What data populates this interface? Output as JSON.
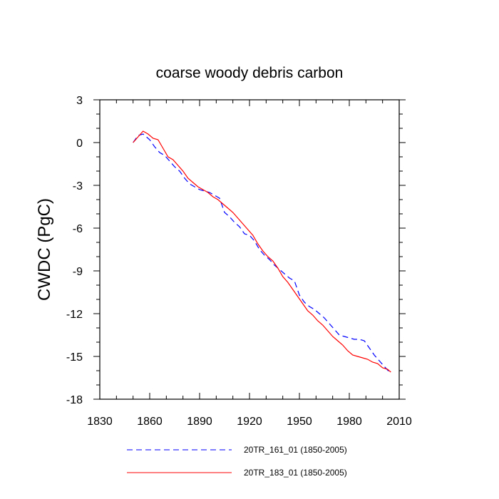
{
  "chart_data": {
    "type": "line",
    "title": "coarse woody debris carbon",
    "xlabel": "",
    "ylabel": "CWDC  (PgC)",
    "xlim": [
      1830,
      2010
    ],
    "ylim": [
      -18,
      3
    ],
    "xticks": [
      1830,
      1860,
      1890,
      1920,
      1950,
      1980,
      2010
    ],
    "yticks": [
      3,
      0,
      -3,
      -6,
      -9,
      -12,
      -15,
      -18
    ],
    "grid": false,
    "legend_placement": "bottom",
    "series": [
      {
        "name": "20TR_161_01 (1850-2005)",
        "color": "#0000ff",
        "dash": "dashed",
        "x": [
          1850,
          1853,
          1856,
          1860,
          1863,
          1866,
          1869,
          1872,
          1875,
          1878,
          1881,
          1884,
          1887,
          1890,
          1893,
          1896,
          1899,
          1902,
          1905,
          1908,
          1911,
          1914,
          1917,
          1920,
          1923,
          1926,
          1929,
          1932,
          1935,
          1938,
          1941,
          1944,
          1947,
          1950,
          1953,
          1956,
          1959,
          1962,
          1965,
          1968,
          1971,
          1974,
          1977,
          1980,
          1983,
          1986,
          1989,
          1992,
          1995,
          1998,
          2001,
          2005
        ],
        "y": [
          0.0,
          0.5,
          0.6,
          0.2,
          -0.3,
          -0.7,
          -0.9,
          -1.3,
          -1.7,
          -2.0,
          -2.5,
          -2.9,
          -3.1,
          -3.3,
          -3.4,
          -3.5,
          -3.7,
          -3.9,
          -4.9,
          -5.2,
          -5.6,
          -5.9,
          -6.4,
          -6.5,
          -6.9,
          -7.5,
          -7.9,
          -8.2,
          -8.6,
          -8.9,
          -9.2,
          -9.5,
          -9.7,
          -10.7,
          -11.2,
          -11.5,
          -11.7,
          -12.0,
          -12.3,
          -12.7,
          -13.1,
          -13.5,
          -13.6,
          -13.7,
          -13.8,
          -13.8,
          -13.9,
          -14.4,
          -14.9,
          -15.3,
          -15.7,
          -16.2
        ]
      },
      {
        "name": "20TR_183_01 (1850-2005)",
        "color": "#ff0000",
        "dash": "solid",
        "x": [
          1850,
          1853,
          1856,
          1859,
          1862,
          1865,
          1868,
          1871,
          1874,
          1877,
          1880,
          1883,
          1886,
          1889,
          1892,
          1895,
          1898,
          1901,
          1904,
          1907,
          1910,
          1913,
          1916,
          1919,
          1922,
          1925,
          1928,
          1931,
          1934,
          1937,
          1940,
          1943,
          1946,
          1949,
          1952,
          1955,
          1958,
          1961,
          1964,
          1967,
          1970,
          1973,
          1976,
          1979,
          1982,
          1985,
          1988,
          1991,
          1994,
          1997,
          2000,
          2003,
          2005
        ],
        "y": [
          0.0,
          0.4,
          0.8,
          0.6,
          0.3,
          0.2,
          -0.4,
          -1.0,
          -1.2,
          -1.6,
          -2.0,
          -2.5,
          -2.8,
          -3.1,
          -3.3,
          -3.5,
          -3.8,
          -4.0,
          -4.3,
          -4.6,
          -4.9,
          -5.3,
          -5.7,
          -6.1,
          -6.5,
          -7.1,
          -7.6,
          -8.0,
          -8.3,
          -8.8,
          -9.4,
          -9.8,
          -10.3,
          -10.8,
          -11.3,
          -11.8,
          -12.1,
          -12.5,
          -12.8,
          -13.2,
          -13.6,
          -13.9,
          -14.2,
          -14.6,
          -14.9,
          -15.0,
          -15.1,
          -15.2,
          -15.4,
          -15.5,
          -15.8,
          -15.9,
          -16.1
        ]
      }
    ]
  }
}
